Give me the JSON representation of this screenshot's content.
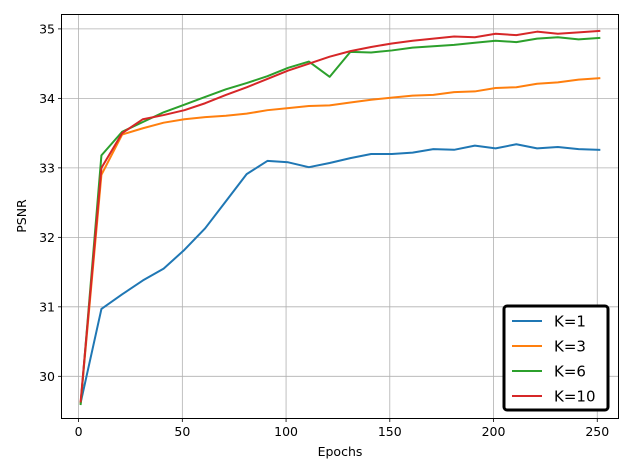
{
  "chart_data": {
    "type": "line",
    "title": "",
    "xlabel": "Epochs",
    "ylabel": "PSNR",
    "xlim": [
      -8,
      260
    ],
    "ylim": [
      29.4,
      35.2
    ],
    "xticks": [
      0,
      50,
      100,
      150,
      200,
      250
    ],
    "yticks": [
      30,
      31,
      32,
      33,
      34,
      35
    ],
    "grid": true,
    "legend_position": "bottom-right",
    "x": [
      1,
      11,
      21,
      31,
      41,
      51,
      61,
      71,
      81,
      91,
      101,
      111,
      121,
      131,
      141,
      151,
      161,
      171,
      181,
      191,
      201,
      211,
      221,
      231,
      241,
      251
    ],
    "series": [
      {
        "name": "K=1",
        "color": "#1f77b4",
        "values": [
          29.62,
          30.97,
          31.18,
          31.38,
          31.55,
          31.82,
          32.13,
          32.52,
          32.91,
          33.1,
          33.08,
          33.01,
          33.07,
          33.14,
          33.2,
          33.2,
          33.22,
          33.27,
          33.26,
          33.32,
          33.28,
          33.34,
          33.28,
          33.3,
          33.27,
          33.26
        ]
      },
      {
        "name": "K=3",
        "color": "#ff7f0e",
        "values": [
          29.62,
          32.9,
          33.48,
          33.57,
          33.65,
          33.7,
          33.73,
          33.75,
          33.78,
          33.83,
          33.86,
          33.89,
          33.9,
          33.94,
          33.98,
          34.01,
          34.04,
          34.05,
          34.09,
          34.1,
          34.15,
          34.16,
          34.21,
          34.23,
          34.27,
          34.29
        ]
      },
      {
        "name": "K=6",
        "color": "#2ca02c",
        "values": [
          29.6,
          33.18,
          33.52,
          33.66,
          33.8,
          33.91,
          34.02,
          34.13,
          34.22,
          34.32,
          34.44,
          34.53,
          34.31,
          34.67,
          34.66,
          34.69,
          34.73,
          34.75,
          34.77,
          34.8,
          34.83,
          34.81,
          34.86,
          34.88,
          34.85,
          34.87
        ]
      },
      {
        "name": "K=10",
        "color": "#d62728",
        "values": [
          29.64,
          33.0,
          33.5,
          33.7,
          33.76,
          33.83,
          33.93,
          34.05,
          34.16,
          34.28,
          34.4,
          34.5,
          34.6,
          34.68,
          34.74,
          34.79,
          34.83,
          34.86,
          34.89,
          34.88,
          34.93,
          34.91,
          34.96,
          34.93,
          34.95,
          34.97
        ]
      }
    ]
  }
}
